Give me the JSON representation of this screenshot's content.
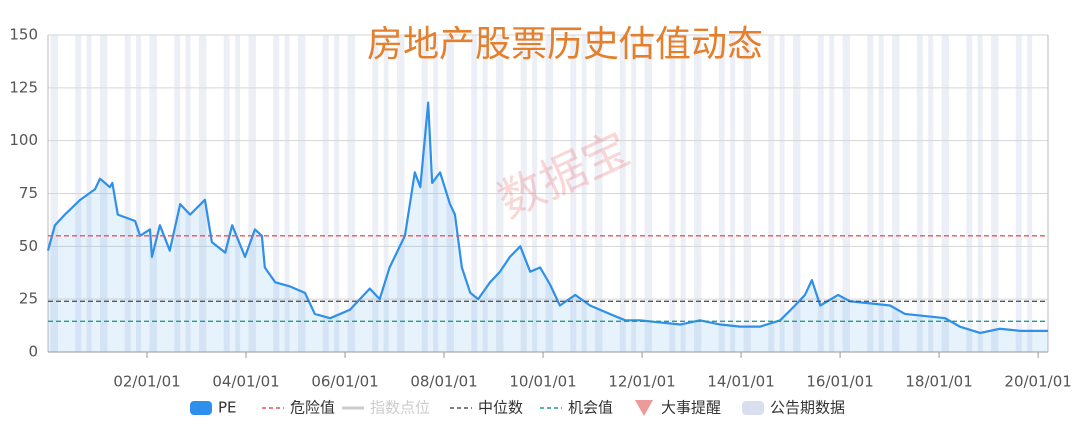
{
  "chart_data": {
    "type": "area",
    "title": "房地产股票历史估值动态",
    "watermark": "数据宝",
    "x": [
      2000.0,
      2000.14,
      2000.34,
      2000.65,
      2000.95,
      2001.05,
      2001.25,
      2001.3,
      2001.41,
      2001.76,
      2001.86,
      2002.06,
      2002.1,
      2002.26,
      2002.46,
      2002.67,
      2002.87,
      2003.17,
      2003.31,
      2003.58,
      2003.72,
      2003.98,
      2004.18,
      2004.32,
      2004.38,
      2004.59,
      2004.89,
      2005.19,
      2005.39,
      2005.7,
      2006.1,
      2006.3,
      2006.5,
      2006.7,
      2006.9,
      2007.21,
      2007.41,
      2007.52,
      2007.68,
      2007.76,
      2007.92,
      2008.12,
      2008.22,
      2008.36,
      2008.53,
      2008.69,
      2008.93,
      2009.13,
      2009.33,
      2009.54,
      2009.74,
      2009.94,
      2010.14,
      2010.34,
      2010.65,
      2010.95,
      2011.35,
      2011.66,
      2011.96,
      2012.36,
      2012.77,
      2013.17,
      2013.58,
      2013.98,
      2014.38,
      2014.79,
      2015.09,
      2015.29,
      2015.43,
      2015.6,
      2015.96,
      2016.2,
      2016.61,
      2017.01,
      2017.31,
      2017.72,
      2018.12,
      2018.42,
      2018.83,
      2019.23,
      2019.64,
      2020.2
    ],
    "series": [
      {
        "name": "PE",
        "color": "#2e90ea",
        "values": [
          48,
          60,
          65,
          72,
          77,
          82,
          78,
          80,
          65,
          62,
          55,
          58,
          45,
          60,
          48,
          70,
          65,
          72,
          52,
          47,
          60,
          45,
          58,
          55,
          40,
          33,
          31,
          28,
          18,
          16,
          20,
          25,
          30,
          25,
          40,
          55,
          85,
          78,
          118,
          80,
          85,
          70,
          65,
          40,
          28,
          25,
          33,
          38,
          45,
          50,
          38,
          40,
          32,
          22,
          27,
          22,
          18,
          15,
          15,
          14,
          13,
          15,
          13,
          12,
          12,
          15,
          22,
          27,
          34,
          22,
          27,
          24,
          23,
          22,
          18,
          17,
          16,
          12,
          9,
          11,
          10,
          10
        ]
      }
    ],
    "reference_lines": [
      {
        "name": "危险值",
        "color": "#e8555b",
        "value": 55
      },
      {
        "name": "中位数",
        "color": "#555555",
        "value": 24
      },
      {
        "name": "机会值",
        "color": "#1f9e8a",
        "value": 14.5
      }
    ],
    "legend_extra": [
      {
        "name": "指数点位",
        "color": "#cccccc"
      },
      {
        "name": "大事提醒",
        "color": "#ec9a9a"
      },
      {
        "name": "公告期数据",
        "color": "#d9dfee"
      }
    ],
    "announcement_periods": [
      [
        2000.05,
        2000.2
      ],
      [
        2000.55,
        2000.67
      ],
      [
        2000.78,
        2000.88
      ],
      [
        2001.05,
        2001.2
      ],
      [
        2001.55,
        2001.67
      ],
      [
        2001.78,
        2001.88
      ],
      [
        2002.05,
        2002.2
      ],
      [
        2002.55,
        2002.67
      ],
      [
        2002.78,
        2002.88
      ],
      [
        2003.05,
        2003.2
      ],
      [
        2003.55,
        2003.67
      ],
      [
        2003.78,
        2003.88
      ],
      [
        2004.05,
        2004.2
      ],
      [
        2004.55,
        2004.67
      ],
      [
        2004.78,
        2004.88
      ],
      [
        2005.05,
        2005.2
      ],
      [
        2005.55,
        2005.67
      ],
      [
        2005.78,
        2005.88
      ],
      [
        2006.05,
        2006.2
      ],
      [
        2006.55,
        2006.67
      ],
      [
        2006.78,
        2006.88
      ],
      [
        2007.05,
        2007.2
      ],
      [
        2007.55,
        2007.67
      ],
      [
        2007.78,
        2007.88
      ],
      [
        2008.05,
        2008.2
      ],
      [
        2008.55,
        2008.67
      ],
      [
        2008.78,
        2008.88
      ],
      [
        2009.05,
        2009.2
      ],
      [
        2009.55,
        2009.67
      ],
      [
        2009.78,
        2009.88
      ],
      [
        2010.05,
        2010.2
      ],
      [
        2010.55,
        2010.67
      ],
      [
        2010.78,
        2010.88
      ],
      [
        2011.05,
        2011.2
      ],
      [
        2011.55,
        2011.67
      ],
      [
        2011.78,
        2011.88
      ],
      [
        2012.05,
        2012.2
      ],
      [
        2012.55,
        2012.67
      ],
      [
        2012.78,
        2012.88
      ],
      [
        2013.05,
        2013.2
      ],
      [
        2013.55,
        2013.67
      ],
      [
        2013.78,
        2013.88
      ],
      [
        2014.05,
        2014.2
      ],
      [
        2014.55,
        2014.67
      ],
      [
        2014.78,
        2014.88
      ],
      [
        2015.05,
        2015.2
      ],
      [
        2015.55,
        2015.67
      ],
      [
        2015.78,
        2015.88
      ],
      [
        2016.05,
        2016.2
      ],
      [
        2016.55,
        2016.67
      ],
      [
        2016.78,
        2016.88
      ],
      [
        2017.05,
        2017.2
      ],
      [
        2017.55,
        2017.67
      ],
      [
        2017.78,
        2017.88
      ],
      [
        2018.05,
        2018.2
      ],
      [
        2018.55,
        2018.67
      ],
      [
        2018.78,
        2018.88
      ],
      [
        2019.05,
        2019.2
      ],
      [
        2019.55,
        2019.67
      ],
      [
        2019.78,
        2019.88
      ]
    ],
    "xlim": [
      2000.0,
      2020.2
    ],
    "xticks": [
      {
        "value": 2002,
        "label": "02/01/01"
      },
      {
        "value": 2004,
        "label": "04/01/01"
      },
      {
        "value": 2006,
        "label": "06/01/01"
      },
      {
        "value": 2008,
        "label": "08/01/01"
      },
      {
        "value": 2010,
        "label": "10/01/01"
      },
      {
        "value": 2012,
        "label": "12/01/01"
      },
      {
        "value": 2014,
        "label": "14/01/01"
      },
      {
        "value": 2016,
        "label": "16/01/01"
      },
      {
        "value": 2018,
        "label": "18/01/01"
      },
      {
        "value": 2020,
        "label": "20/01/01"
      }
    ],
    "ylim": [
      0,
      150
    ],
    "yticks": [
      0,
      25,
      50,
      75,
      100,
      125,
      150
    ],
    "grid": true
  }
}
